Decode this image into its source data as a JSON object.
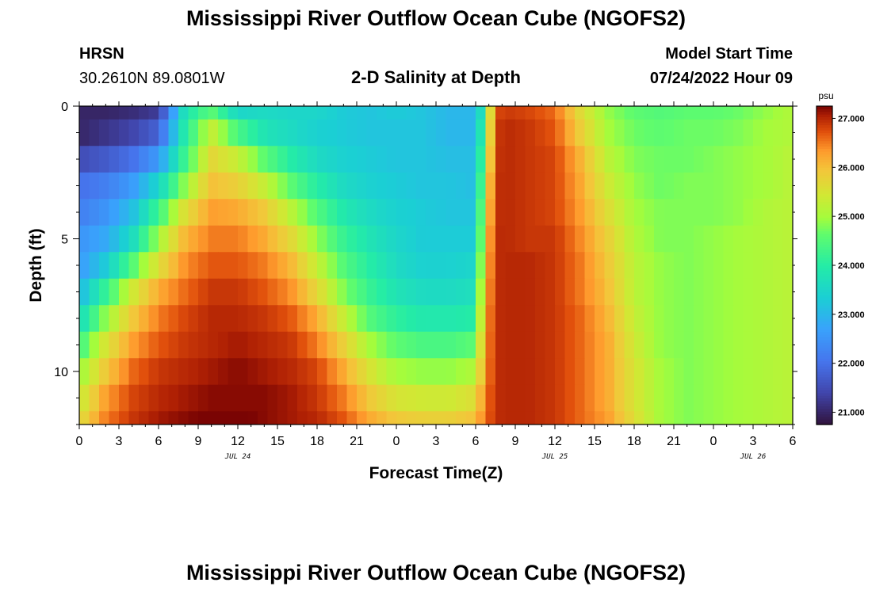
{
  "title": "Mississippi River Outflow Ocean Cube (NGOFS2)",
  "title_bottom": "Mississippi River Outflow Ocean Cube (NGOFS2)",
  "station": {
    "name": "HRSN",
    "coords": "30.2610N  89.0801W"
  },
  "plot_title": "2-D Salinity at Depth",
  "model_start": {
    "label": "Model Start Time",
    "value": "07/24/2022 Hour 09"
  },
  "chart_data": {
    "type": "heatmap",
    "title": "2-D Salinity at Depth",
    "xlabel": "Forecast Time(Z)",
    "ylabel": "Depth (ft)",
    "x_hours_range": [
      0,
      54
    ],
    "ylim": [
      0,
      12
    ],
    "y_inverted": true,
    "x_ticks": [
      "0",
      "3",
      "6",
      "9",
      "12",
      "15",
      "18",
      "21",
      "0",
      "3",
      "6",
      "9",
      "12",
      "15",
      "18",
      "21",
      "0",
      "3",
      "6"
    ],
    "y_ticks": [
      "0",
      "5",
      "10"
    ],
    "date_labels": [
      {
        "label": "JUL 24",
        "hour": 12
      },
      {
        "label": "JUL 25",
        "hour": 36
      },
      {
        "label": "JUL 26",
        "hour": 51
      }
    ],
    "colorbar": {
      "unit": "psu",
      "min": 20.75,
      "max": 27.25,
      "ticks": [
        "21.000",
        "22.000",
        "23.000",
        "24.000",
        "25.000",
        "26.000",
        "27.000"
      ]
    },
    "times": [
      0,
      2,
      4,
      6,
      8,
      10,
      12,
      14,
      16,
      18,
      20,
      22,
      24,
      26,
      28,
      30,
      30.6,
      31.4,
      32,
      34,
      36,
      38,
      40,
      42,
      44,
      46,
      48,
      50,
      52,
      54
    ],
    "depths": [
      0,
      1,
      2,
      3,
      4,
      5,
      6,
      7,
      8,
      9,
      10,
      11,
      12
    ],
    "salinity": [
      [
        21.0,
        21.0,
        21.1,
        21.3,
        23.8,
        24.6,
        23.5,
        23.6,
        23.5,
        23.5,
        23.3,
        23.2,
        23.3,
        23.2,
        23.0,
        23.0,
        24.0,
        26.5,
        26.9,
        26.8,
        26.6,
        25.6,
        24.9,
        24.6,
        24.5,
        24.6,
        24.6,
        24.7,
        24.9,
        25.1
      ],
      [
        21.0,
        21.2,
        21.4,
        21.8,
        24.0,
        25.3,
        24.4,
        23.8,
        23.6,
        23.4,
        23.3,
        23.2,
        23.2,
        23.2,
        23.0,
        23.0,
        24.3,
        26.6,
        27.0,
        26.9,
        26.7,
        25.8,
        25.0,
        24.7,
        24.6,
        24.7,
        24.7,
        24.8,
        25.0,
        25.1
      ],
      [
        21.5,
        21.7,
        22.0,
        22.6,
        24.3,
        25.7,
        25.3,
        24.6,
        24.0,
        23.6,
        23.4,
        23.3,
        23.2,
        23.2,
        23.1,
        23.1,
        24.6,
        26.7,
        27.0,
        26.9,
        26.8,
        26.1,
        25.2,
        24.8,
        24.7,
        24.7,
        24.8,
        24.9,
        25.0,
        25.2
      ],
      [
        22.0,
        22.2,
        22.6,
        23.5,
        24.9,
        26.0,
        25.8,
        25.3,
        24.6,
        24.0,
        23.6,
        23.4,
        23.3,
        23.2,
        23.2,
        23.1,
        24.9,
        26.8,
        27.0,
        26.9,
        26.8,
        26.2,
        25.4,
        24.9,
        24.7,
        24.8,
        24.8,
        24.9,
        25.0,
        25.2
      ],
      [
        22.2,
        22.5,
        23.1,
        24.3,
        25.6,
        26.3,
        26.2,
        25.9,
        25.2,
        24.5,
        23.9,
        23.6,
        23.4,
        23.3,
        23.2,
        23.2,
        25.2,
        26.8,
        27.0,
        26.9,
        26.8,
        26.3,
        25.6,
        25.0,
        24.8,
        24.8,
        24.8,
        24.9,
        25.1,
        25.2
      ],
      [
        22.5,
        22.8,
        23.6,
        25.0,
        26.1,
        26.5,
        26.5,
        26.2,
        25.7,
        24.9,
        24.2,
        23.8,
        23.5,
        23.3,
        23.3,
        23.3,
        25.4,
        26.9,
        27.0,
        26.9,
        26.9,
        26.4,
        25.8,
        25.1,
        24.8,
        24.8,
        24.9,
        25.0,
        25.1,
        25.2
      ],
      [
        22.6,
        23.3,
        24.5,
        25.6,
        26.4,
        26.7,
        26.7,
        26.5,
        26.1,
        25.3,
        24.5,
        24.0,
        23.6,
        23.4,
        23.4,
        23.5,
        25.6,
        26.9,
        27.0,
        27.0,
        26.9,
        26.5,
        25.9,
        25.2,
        24.9,
        24.8,
        24.9,
        25.0,
        25.1,
        25.2
      ],
      [
        23.0,
        24.2,
        25.4,
        26.2,
        26.6,
        26.9,
        26.9,
        26.7,
        26.4,
        25.7,
        24.8,
        24.2,
        23.8,
        23.6,
        23.6,
        23.7,
        25.8,
        26.9,
        27.0,
        27.0,
        26.9,
        26.5,
        26.0,
        25.2,
        24.9,
        24.8,
        24.9,
        25.0,
        25.1,
        25.2
      ],
      [
        23.6,
        24.9,
        25.9,
        26.5,
        26.8,
        27.0,
        27.0,
        26.9,
        26.7,
        26.2,
        25.3,
        24.5,
        24.1,
        23.9,
        23.9,
        24.0,
        26.0,
        26.9,
        27.0,
        27.0,
        26.9,
        26.6,
        26.1,
        25.3,
        24.9,
        24.8,
        24.9,
        25.0,
        25.1,
        25.2
      ],
      [
        24.3,
        25.5,
        26.3,
        26.7,
        26.9,
        27.0,
        27.1,
        27.0,
        26.9,
        26.5,
        25.8,
        25.0,
        24.6,
        24.4,
        24.4,
        24.6,
        26.1,
        26.9,
        27.0,
        27.0,
        26.9,
        26.6,
        26.2,
        25.4,
        24.9,
        24.8,
        24.9,
        25.0,
        25.1,
        25.2
      ],
      [
        24.9,
        25.9,
        26.6,
        26.9,
        27.0,
        27.1,
        27.2,
        27.1,
        27.0,
        26.8,
        26.2,
        25.5,
        25.0,
        24.9,
        24.9,
        25.1,
        26.2,
        26.9,
        27.0,
        27.0,
        26.9,
        26.6,
        26.2,
        25.5,
        25.0,
        24.8,
        24.9,
        25.0,
        25.1,
        25.2
      ],
      [
        25.3,
        26.3,
        26.8,
        27.0,
        27.1,
        27.2,
        27.2,
        27.2,
        27.1,
        26.9,
        26.5,
        25.9,
        25.5,
        25.4,
        25.4,
        25.6,
        26.4,
        26.9,
        27.0,
        27.0,
        26.9,
        26.6,
        26.2,
        25.5,
        25.0,
        24.8,
        24.9,
        25.0,
        25.1,
        25.2
      ],
      [
        25.6,
        26.5,
        26.9,
        27.1,
        27.2,
        27.3,
        27.3,
        27.2,
        27.1,
        27.0,
        26.7,
        26.2,
        25.9,
        25.8,
        25.8,
        26.0,
        26.5,
        26.9,
        27.0,
        27.0,
        26.9,
        26.6,
        26.3,
        25.6,
        25.0,
        24.8,
        24.9,
        25.0,
        25.1,
        25.2
      ]
    ]
  }
}
